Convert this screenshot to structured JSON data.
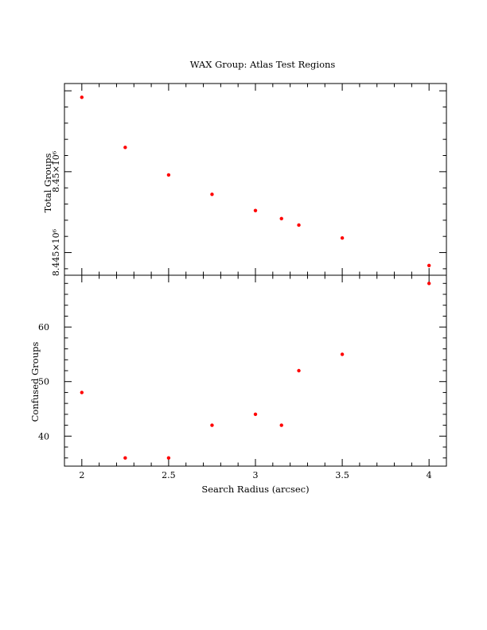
{
  "chart_data": {
    "type": "scatter",
    "title": "WAX Group: Atlas Test Regions",
    "xlabel": "Search Radius (arcsec)",
    "xlim": [
      1.9,
      4.1
    ],
    "x_ticks": [
      "2",
      "2.5",
      "3",
      "3.5",
      "4"
    ],
    "x_tick_values": [
      2,
      2.5,
      3,
      3.5,
      4
    ],
    "color": "#ff0000",
    "panels": [
      {
        "ylabel": "Total Groups",
        "ylim": [
          8443600.0,
          8455450.0
        ],
        "y_ticks": [
          "8.445×10⁶",
          "8.45×10⁶"
        ],
        "y_tick_values": [
          8445000.0,
          8450000.0
        ],
        "series": [
          {
            "x": [
              2,
              2.25,
              2.5,
              2.75,
              3,
              3.15,
              3.25,
              3.5,
              4
            ],
            "values": [
              8454600.0,
              8451500.0,
              8449800.0,
              8448600.0,
              8447600.0,
              8447100.0,
              8446700.0,
              8445900.0,
              8444200.0
            ]
          }
        ]
      },
      {
        "ylabel": "Confused Groups",
        "ylim": [
          34.5,
          69.5
        ],
        "y_ticks": [
          "40",
          "50",
          "60"
        ],
        "y_tick_values": [
          40,
          50,
          60
        ],
        "series": [
          {
            "x": [
              2,
              2.25,
              2.5,
              2.75,
              3,
              3.15,
              3.25,
              3.5,
              4
            ],
            "values": [
              48,
              36,
              36,
              42,
              44,
              42,
              52,
              55,
              68
            ]
          }
        ]
      }
    ]
  }
}
